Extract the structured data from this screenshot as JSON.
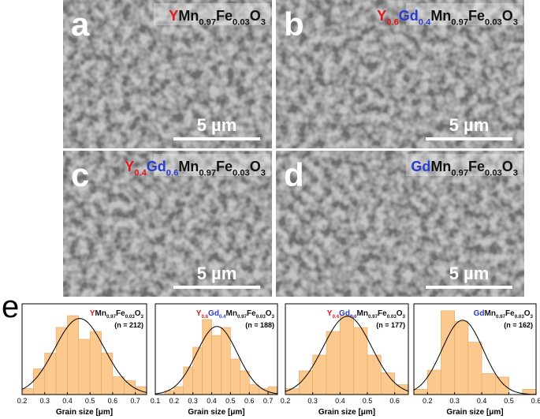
{
  "panels": [
    {
      "letter": "a",
      "scale_bar": "5 µm",
      "formula": [
        {
          "text": "Y",
          "color": "#e8141c"
        },
        {
          "text": "Mn"
        },
        {
          "text": "0.97",
          "sub": true
        },
        {
          "text": "Fe"
        },
        {
          "text": "0.03",
          "sub": true
        },
        {
          "text": "O"
        },
        {
          "text": "3",
          "sub": true
        }
      ]
    },
    {
      "letter": "b",
      "scale_bar": "5 µm",
      "formula": [
        {
          "text": "Y",
          "color": "#e8141c"
        },
        {
          "text": "0.6",
          "sub": true,
          "color": "#e8141c"
        },
        {
          "text": "Gd",
          "color": "#2a3bd4"
        },
        {
          "text": "0.4",
          "sub": true,
          "color": "#2a3bd4"
        },
        {
          "text": "Mn"
        },
        {
          "text": "0.97",
          "sub": true
        },
        {
          "text": "Fe"
        },
        {
          "text": "0.03",
          "sub": true
        },
        {
          "text": "O"
        },
        {
          "text": "3",
          "sub": true
        }
      ]
    },
    {
      "letter": "c",
      "scale_bar": "5 µm",
      "formula": [
        {
          "text": "Y",
          "color": "#e8141c"
        },
        {
          "text": "0.4",
          "sub": true,
          "color": "#e8141c"
        },
        {
          "text": "Gd",
          "color": "#2a3bd4"
        },
        {
          "text": "0.6",
          "sub": true,
          "color": "#2a3bd4"
        },
        {
          "text": "Mn"
        },
        {
          "text": "0.97",
          "sub": true
        },
        {
          "text": "Fe"
        },
        {
          "text": "0.03",
          "sub": true
        },
        {
          "text": "O"
        },
        {
          "text": "3",
          "sub": true
        }
      ]
    },
    {
      "letter": "d",
      "scale_bar": "5 µm",
      "formula": [
        {
          "text": "Gd",
          "color": "#2a3bd4"
        },
        {
          "text": "Mn"
        },
        {
          "text": "0.97",
          "sub": true
        },
        {
          "text": "Fe"
        },
        {
          "text": "0.03",
          "sub": true
        },
        {
          "text": "O"
        },
        {
          "text": "3",
          "sub": true
        }
      ]
    }
  ],
  "hist_letter": "e",
  "chart_data": [
    {
      "type": "histogram",
      "color": "#fbc98e",
      "title": [
        {
          "text": "Y",
          "color": "#e8141c"
        },
        {
          "text": "Mn"
        },
        {
          "text": "0.97",
          "sub": true
        },
        {
          "text": "Fe"
        },
        {
          "text": "0.03",
          "sub": true
        },
        {
          "text": "O"
        },
        {
          "text": "3",
          "sub": true
        }
      ],
      "n_label": "(n = 212)",
      "xlabel": "Grain size [μm]",
      "bins": [
        0.2,
        0.25,
        0.3,
        0.35,
        0.4,
        0.45,
        0.5,
        0.55,
        0.6,
        0.65,
        0.7,
        0.75
      ],
      "counts": [
        3,
        13,
        21,
        34,
        40,
        28,
        32,
        21,
        9,
        7,
        4
      ],
      "xlim": [
        0.2,
        0.75
      ],
      "xticks": [
        0.2,
        0.3,
        0.4,
        0.5,
        0.6,
        0.7
      ],
      "ylim": [
        0,
        46
      ]
    },
    {
      "type": "histogram",
      "color": "#fbc98e",
      "title": [
        {
          "text": "Y",
          "color": "#e8141c"
        },
        {
          "text": "0.6",
          "sub": true,
          "color": "#e8141c"
        },
        {
          "text": "Gd",
          "color": "#2a3bd4"
        },
        {
          "text": "0.4",
          "sub": true,
          "color": "#2a3bd4"
        },
        {
          "text": "Mn"
        },
        {
          "text": "0.97",
          "sub": true
        },
        {
          "text": "Fe"
        },
        {
          "text": "0.03",
          "sub": true
        },
        {
          "text": "O"
        },
        {
          "text": "3",
          "sub": true
        }
      ],
      "n_label": "(n = 188)",
      "xlabel": "Grain size [μm]",
      "bins": [
        0.15,
        0.2,
        0.25,
        0.3,
        0.35,
        0.4,
        0.45,
        0.5,
        0.55,
        0.6,
        0.65,
        0.7,
        0.75
      ],
      "counts": [
        2,
        4,
        14,
        24,
        38,
        30,
        34,
        18,
        12,
        5,
        3,
        4
      ],
      "xlim": [
        0.1,
        0.75
      ],
      "xticks": [
        0.1,
        0.2,
        0.3,
        0.4,
        0.5,
        0.6,
        0.7
      ],
      "ylim": [
        0,
        46
      ]
    },
    {
      "type": "histogram",
      "color": "#fbc98e",
      "title": [
        {
          "text": "Y",
          "color": "#e8141c"
        },
        {
          "text": "0.4",
          "sub": true,
          "color": "#e8141c"
        },
        {
          "text": "Gd",
          "color": "#2a3bd4"
        },
        {
          "text": "0.6",
          "sub": true,
          "color": "#2a3bd4"
        },
        {
          "text": "Mn"
        },
        {
          "text": "0.97",
          "sub": true
        },
        {
          "text": "Fe"
        },
        {
          "text": "0.03",
          "sub": true
        },
        {
          "text": "O"
        },
        {
          "text": "3",
          "sub": true
        }
      ],
      "n_label": "(n = 177)",
      "xlabel": "Grain size [μm]",
      "bins": [
        0.2,
        0.25,
        0.3,
        0.35,
        0.4,
        0.45,
        0.5,
        0.55,
        0.6,
        0.65
      ],
      "counts": [
        3,
        12,
        20,
        32,
        40,
        34,
        20,
        11,
        5
      ],
      "xlim": [
        0.2,
        0.65
      ],
      "xticks": [
        0.2,
        0.3,
        0.4,
        0.5,
        0.6
      ],
      "ylim": [
        0,
        46
      ]
    },
    {
      "type": "histogram",
      "color": "#fbc98e",
      "title": [
        {
          "text": "Gd",
          "color": "#2a3bd4"
        },
        {
          "text": "Mn"
        },
        {
          "text": "0.97",
          "sub": true
        },
        {
          "text": "Fe"
        },
        {
          "text": "0.03",
          "sub": true
        },
        {
          "text": "O"
        },
        {
          "text": "3",
          "sub": true
        }
      ],
      "n_label": "(n = 162)",
      "xlabel": "Grain size [μm]",
      "bins": [
        0.15,
        0.2,
        0.25,
        0.3,
        0.35,
        0.4,
        0.45,
        0.5,
        0.55,
        0.6
      ],
      "counts": [
        3,
        14,
        48,
        42,
        30,
        12,
        10,
        0,
        3
      ],
      "xlim": [
        0.15,
        0.6
      ],
      "xticks": [
        0.2,
        0.3,
        0.4,
        0.5,
        0.6
      ],
      "ylim": [
        0,
        52
      ]
    }
  ]
}
